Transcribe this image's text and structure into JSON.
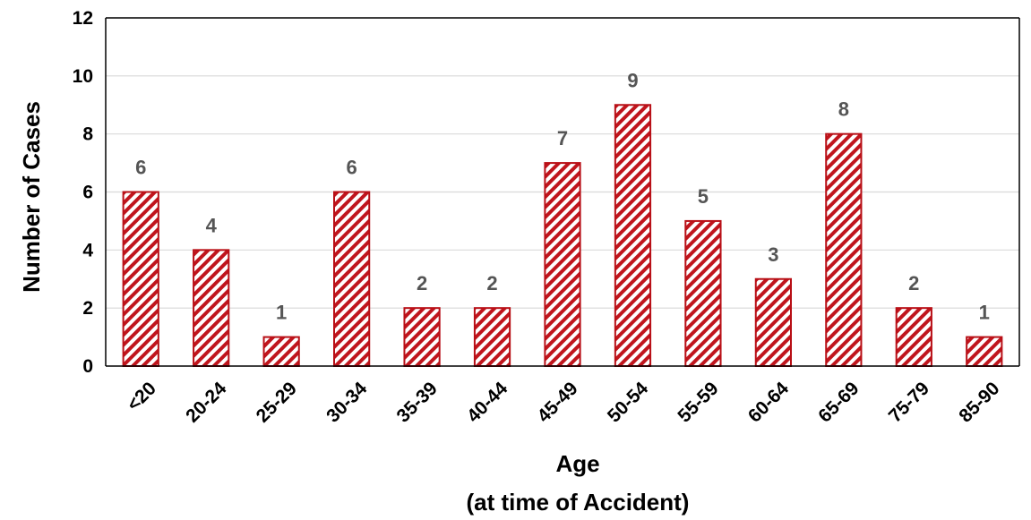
{
  "colors": {
    "bar_stroke": "#b80f16",
    "hatch": "#c0151d",
    "grid": "#d9d9d9",
    "axis": "#000000",
    "label": "#555555"
  },
  "chart_data": {
    "type": "bar",
    "categories": [
      "<20",
      "20-24",
      "25-29",
      "30-34",
      "35-39",
      "40-44",
      "45-49",
      "50-54",
      "55-59",
      "60-64",
      "65-69",
      "75-79",
      "85-90"
    ],
    "values": [
      6,
      4,
      1,
      6,
      2,
      2,
      7,
      9,
      5,
      3,
      8,
      2,
      1
    ],
    "xlabel_line1": "Age",
    "xlabel_line2": "(at time of Accident)",
    "ylabel": "Number of Cases",
    "ylim": [
      0,
      12
    ],
    "yticks": [
      0,
      2,
      4,
      6,
      8,
      10,
      12
    ],
    "grid": true,
    "data_labels": true,
    "bar_fill": "diagonal-hatch"
  }
}
